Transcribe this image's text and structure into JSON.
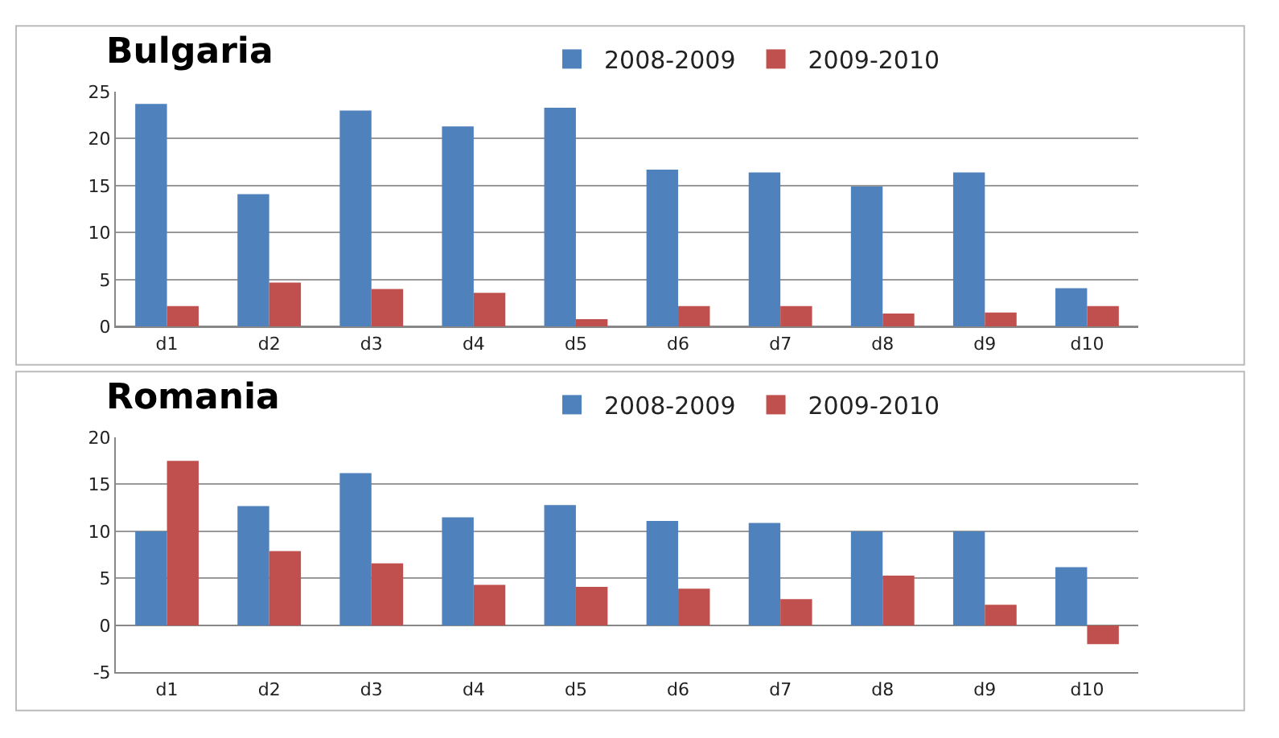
{
  "chart_data": [
    {
      "type": "bar",
      "title": "Bulgaria",
      "categories": [
        "d1",
        "d2",
        "d3",
        "d4",
        "d5",
        "d6",
        "d7",
        "d8",
        "d9",
        "d10"
      ],
      "series": [
        {
          "name": "2008-2009",
          "color": "#4f81bd",
          "values": [
            23.7,
            14.1,
            23.0,
            21.3,
            23.3,
            16.7,
            16.4,
            14.9,
            16.4,
            4.1
          ]
        },
        {
          "name": "2009-2010",
          "color": "#c0504d",
          "values": [
            2.2,
            4.7,
            4.0,
            3.6,
            0.8,
            2.2,
            2.2,
            1.4,
            1.5,
            2.2
          ]
        }
      ],
      "ylim": [
        0,
        25
      ],
      "yticks": [
        0,
        5,
        10,
        15,
        20,
        25
      ],
      "grid": "y",
      "legend": "top"
    },
    {
      "type": "bar",
      "title": "Romania",
      "categories": [
        "d1",
        "d2",
        "d3",
        "d4",
        "d5",
        "d6",
        "d7",
        "d8",
        "d9",
        "d10"
      ],
      "series": [
        {
          "name": "2008-2009",
          "color": "#4f81bd",
          "values": [
            10.0,
            12.7,
            16.2,
            11.5,
            12.8,
            11.1,
            10.9,
            10.0,
            10.0,
            6.2
          ]
        },
        {
          "name": "2009-2010",
          "color": "#c0504d",
          "values": [
            17.5,
            7.9,
            6.6,
            4.3,
            4.1,
            3.9,
            2.8,
            5.3,
            2.2,
            -2.0
          ]
        }
      ],
      "ylim": [
        -5,
        20
      ],
      "yticks": [
        -5,
        0,
        5,
        10,
        15,
        20
      ],
      "grid": "y",
      "legend": "top"
    }
  ]
}
